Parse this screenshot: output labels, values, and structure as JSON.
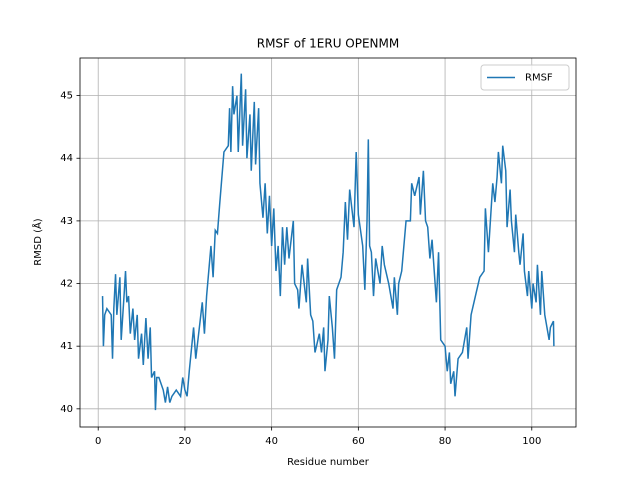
{
  "chart_data": {
    "type": "line",
    "title": "RMSF of 1ERU OPENMM",
    "xlabel": "Residue number",
    "ylabel": "RMSD (Å)",
    "x": [
      1,
      1.2,
      1.5,
      2,
      3,
      3.3,
      3.6,
      4,
      4.3,
      5,
      5.3,
      6,
      6.3,
      6.6,
      7,
      7.4,
      8,
      8.4,
      9,
      9.3,
      10,
      10.4,
      11,
      11.5,
      12,
      12.3,
      13,
      13.2,
      13.5,
      14,
      15,
      15.5,
      16,
      16.5,
      17,
      18,
      19,
      19.5,
      20,
      20.5,
      21,
      22,
      22.5,
      23,
      24,
      24.5,
      25,
      26,
      26.5,
      27,
      27.5,
      28,
      29,
      30,
      30.3,
      30.6,
      31,
      31.3,
      32,
      32.3,
      33,
      33.3,
      34,
      34.3,
      35,
      35.3,
      36,
      36.3,
      37,
      37.3,
      38,
      38.5,
      39,
      39.5,
      40,
      40.5,
      41,
      41.5,
      42,
      42.5,
      43,
      43.5,
      44,
      45,
      45.3,
      46,
      46.3,
      47,
      48,
      48.3,
      49,
      49.5,
      50,
      51,
      51.5,
      52,
      52.3,
      53,
      53.3,
      54,
      54.5,
      55,
      56,
      56.5,
      57,
      57.5,
      58,
      59,
      59.5,
      60,
      61,
      61.5,
      62,
      62.3,
      62.6,
      63,
      63.5,
      64,
      65,
      65.5,
      66,
      67,
      68,
      68.3,
      69,
      69.3,
      70,
      71,
      72,
      72.3,
      73,
      74,
      74.3,
      75,
      75.5,
      76,
      76.5,
      77,
      78,
      78.5,
      79,
      80,
      80.5,
      81,
      81.3,
      82,
      82.3,
      83,
      84,
      85,
      85.3,
      86,
      87,
      88,
      89,
      89.3,
      90,
      91,
      91.5,
      92,
      92.3,
      93,
      93.3,
      94,
      94.3,
      95,
      95.3,
      96,
      96.3,
      97,
      97.3,
      98,
      98.3,
      99,
      99.3,
      100,
      100.3,
      101,
      101.3,
      102,
      102.3,
      103,
      104,
      104.3,
      105,
      105.1
    ],
    "series": [
      {
        "name": "RMSF",
        "color": "#1f77b4",
        "values": [
          41.8,
          41.0,
          41.5,
          41.6,
          41.5,
          40.8,
          41.6,
          42.15,
          41.5,
          42.1,
          41.1,
          41.85,
          42.2,
          41.7,
          41.8,
          41.2,
          41.6,
          41.1,
          41.5,
          40.8,
          41.2,
          40.7,
          41.45,
          40.8,
          41.3,
          40.5,
          40.6,
          39.98,
          40.5,
          40.5,
          40.3,
          40.1,
          40.35,
          40.1,
          40.2,
          40.3,
          40.2,
          40.5,
          40.3,
          40.2,
          40.6,
          41.3,
          40.8,
          41.1,
          41.7,
          41.2,
          41.8,
          42.6,
          42.1,
          42.85,
          42.8,
          43.25,
          44.1,
          44.2,
          44.8,
          44.1,
          45.15,
          44.7,
          45.0,
          44.1,
          45.35,
          44.2,
          45.1,
          44.0,
          44.7,
          43.8,
          44.9,
          43.9,
          44.8,
          43.6,
          43.05,
          43.6,
          42.8,
          43.4,
          42.6,
          43.2,
          42.2,
          42.6,
          41.8,
          42.9,
          42.3,
          42.9,
          42.4,
          43.0,
          42.0,
          41.9,
          41.6,
          42.3,
          41.7,
          42.4,
          41.5,
          41.4,
          40.9,
          41.2,
          40.9,
          41.3,
          40.6,
          41.1,
          41.8,
          41.3,
          40.8,
          41.9,
          42.1,
          42.5,
          43.3,
          42.7,
          43.5,
          42.9,
          44.1,
          43.1,
          42.6,
          41.9,
          43.0,
          44.3,
          42.6,
          42.5,
          41.8,
          42.4,
          42.0,
          42.6,
          42.3,
          42.0,
          41.6,
          42.1,
          41.5,
          42.0,
          42.2,
          43.0,
          43.0,
          43.6,
          43.4,
          43.7,
          43.1,
          43.8,
          43.0,
          42.9,
          42.4,
          42.7,
          41.7,
          42.5,
          41.1,
          41.0,
          40.6,
          40.9,
          40.4,
          40.6,
          40.2,
          40.8,
          40.9,
          41.3,
          40.8,
          41.5,
          41.8,
          42.1,
          42.2,
          43.2,
          42.5,
          43.6,
          43.3,
          43.7,
          44.1,
          43.6,
          44.2,
          43.8,
          42.9,
          43.5,
          43.0,
          42.5,
          43.1,
          42.5,
          42.3,
          42.8,
          42.2,
          41.8,
          42.2,
          41.6,
          42.0,
          41.7,
          42.3,
          41.5,
          42.2,
          41.5,
          41.1,
          41.3,
          41.4,
          41.0
        ]
      }
    ],
    "xlim": [
      -4.2,
      110.2
    ],
    "ylim": [
      39.71,
      45.6
    ],
    "xticks": [
      0,
      20,
      40,
      60,
      80,
      100
    ],
    "yticks": [
      40,
      41,
      42,
      43,
      44,
      45
    ],
    "grid": true,
    "legend": "upper right"
  }
}
